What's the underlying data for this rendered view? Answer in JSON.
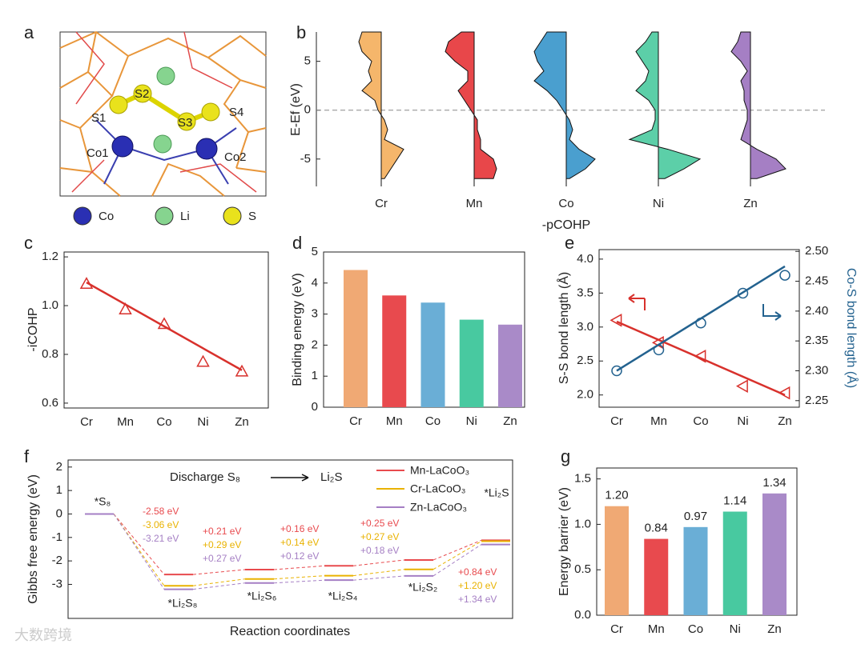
{
  "panel_labels": [
    "a",
    "b",
    "c",
    "d",
    "e",
    "f",
    "g"
  ],
  "structure": {
    "atom_labels": [
      "S1",
      "S2",
      "S3",
      "S4",
      "Co1",
      "Co2"
    ],
    "legend": [
      {
        "name": "Co",
        "color": "#2a2fb3"
      },
      {
        "name": "Li",
        "color": "#86d48f"
      },
      {
        "name": "S",
        "color": "#e9e21c"
      }
    ]
  },
  "watermark": "大数跨境",
  "chart_data": [
    {
      "type": "area",
      "ylabel": "E-Ef (eV)",
      "xlabel": "-pCOHP",
      "y": [
        -7,
        -6,
        -5,
        -4,
        -3,
        -2,
        -1,
        0,
        1,
        2,
        3,
        4,
        5,
        6,
        7,
        8
      ],
      "series": [
        {
          "name": "Cr",
          "color": "#f5b66b",
          "values": [
            0.05,
            0.15,
            0.25,
            0.35,
            0.05,
            0.1,
            0.05,
            -0.05,
            -0.1,
            -0.3,
            -0.15,
            -0.2,
            -0.15,
            -0.3,
            -0.35,
            -0.3
          ]
        },
        {
          "name": "Mn",
          "color": "#e8474a",
          "values": [
            0.3,
            0.35,
            0.3,
            0.1,
            0.1,
            0.05,
            0.05,
            -0.05,
            -0.15,
            -0.25,
            -0.1,
            -0.1,
            -0.3,
            -0.45,
            -0.4,
            -0.2
          ]
        },
        {
          "name": "Co",
          "color": "#4a9fcf",
          "values": [
            0.05,
            0.3,
            0.45,
            0.2,
            0.05,
            0.1,
            0.05,
            -0.05,
            -0.15,
            -0.3,
            -0.5,
            -0.35,
            -0.45,
            -0.5,
            -0.4,
            -0.3
          ]
        },
        {
          "name": "Ni",
          "color": "#5ccfa8",
          "values": [
            0.1,
            0.4,
            0.65,
            0.15,
            -0.45,
            -0.1,
            -0.05,
            -0.05,
            -0.15,
            -0.35,
            -0.2,
            -0.15,
            -0.25,
            -0.35,
            -0.2,
            -0.1
          ]
        },
        {
          "name": "Zn",
          "color": "#a57fc4",
          "values": [
            0.1,
            0.55,
            0.4,
            0.1,
            -0.15,
            -0.1,
            -0.05,
            -0.05,
            -0.1,
            -0.1,
            -0.15,
            -0.05,
            -0.15,
            -0.3,
            -0.2,
            -0.15
          ]
        }
      ],
      "ylim": [
        -7.8,
        8
      ],
      "yticks": [
        -5,
        0,
        5
      ],
      "hline": 0
    },
    {
      "type": "scatter_fit",
      "ylabel": "-iCOHP",
      "categories": [
        "Cr",
        "Mn",
        "Co",
        "Ni",
        "Zn"
      ],
      "values": [
        1.09,
        0.985,
        0.925,
        0.77,
        0.73
      ],
      "fit": [
        1.095,
        0.735
      ],
      "color": "#d8312c",
      "ylim": [
        0.58,
        1.22
      ],
      "yticks": [
        0.6,
        0.8,
        {
          "value": 1,
          "label": "1.0"
        },
        1.2
      ]
    },
    {
      "type": "bar",
      "ylabel": "Binding energy (eV)",
      "categories": [
        "Cr",
        "Mn",
        "Co",
        "Ni",
        "Zn"
      ],
      "values": [
        4.42,
        3.6,
        3.37,
        2.82,
        2.66
      ],
      "colors": [
        "#f0a974",
        "#e84a4e",
        "#6aaed6",
        "#48c9a0",
        "#a98ac8"
      ],
      "ylim": [
        0,
        5
      ],
      "yticks": [
        0,
        1,
        2,
        3,
        4,
        5
      ]
    },
    {
      "type": "dual",
      "ylabel": "S-S bond length (Å)",
      "y2label": "Co-S bond length (Å)",
      "categories": [
        "Cr",
        "Mn",
        "Co",
        "Ni",
        "Zn"
      ],
      "series": [
        {
          "color": "#d8312c",
          "marker": "triangle",
          "values": [
            3.1,
            2.77,
            2.57,
            2.13,
            2.03
          ],
          "fit": [
            3.08,
            2.0
          ]
        },
        {
          "color": "#23628f",
          "marker": "circle",
          "axis": "y2",
          "values": [
            2.3,
            2.335,
            2.38,
            2.43,
            2.46
          ],
          "fit": [
            2.3,
            2.475
          ]
        }
      ],
      "ylim": [
        1.82,
        4.14
      ],
      "yticks": [
        {
          "value": 2,
          "label": "2.0"
        },
        2.5,
        {
          "value": 3,
          "label": "3.0"
        },
        3.5,
        {
          "value": 4,
          "label": "4.0"
        }
      ],
      "y2lim": [
        2.239,
        2.503
      ],
      "y2ticks": [
        2.25,
        {
          "value": 2.3,
          "label": "2.30"
        },
        2.35,
        {
          "value": 2.4,
          "label": "2.40"
        },
        2.45,
        {
          "value": 2.5,
          "label": "2.50"
        }
      ]
    },
    {
      "type": "profile",
      "ylabel": "Gibbs free energy (eV)",
      "xlabel": "Reaction coordinates",
      "annotation": "Discharge S₈",
      "annotation_end": "Li₂S",
      "categories": [
        "*S₈",
        "*Li₂S₈",
        "*Li₂S₆",
        "*Li₂S₄",
        "*Li₂S₂",
        "*Li₂S"
      ],
      "series": [
        {
          "name": "Mn-LaCoO₃",
          "color": "#e84a4e",
          "values": [
            0,
            -2.58,
            -2.37,
            -2.21,
            -1.96,
            -1.12
          ]
        },
        {
          "name": "Cr-LaCoO₃",
          "color": "#e9b200",
          "values": [
            0,
            -3.06,
            -2.77,
            -2.63,
            -2.36,
            -1.16
          ]
        },
        {
          "name": "Zn-LaCoO₃",
          "color": "#a57fc4",
          "values": [
            0,
            -3.21,
            -2.94,
            -2.82,
            -2.64,
            -1.3
          ]
        }
      ],
      "step_labels": [
        [
          "-2.58 eV",
          "-3.06 eV",
          "-3.21 eV"
        ],
        [
          "+0.21 eV",
          "+0.29 eV",
          "+0.27 eV"
        ],
        [
          "+0.16 eV",
          "+0.14 eV",
          "+0.12 eV"
        ],
        [
          "+0.25 eV",
          "+0.27 eV",
          "+0.18 eV"
        ],
        [
          "+0.84 eV",
          "+1.20 eV",
          "+1.34 eV"
        ]
      ],
      "ylim": [
        -4.45,
        2.3
      ],
      "yticks": [
        -3,
        -2,
        -1,
        0,
        1,
        2
      ]
    },
    {
      "type": "bar",
      "ylabel": "Energy barrier (eV)",
      "categories": [
        "Cr",
        "Mn",
        "Co",
        "Ni",
        "Zn"
      ],
      "values": [
        1.2,
        0.84,
        0.97,
        1.14,
        1.34
      ],
      "value_labels": [
        "1.20",
        "0.84",
        "0.97",
        "1.14",
        "1.34"
      ],
      "colors": [
        "#f0a974",
        "#e84a4e",
        "#6aaed6",
        "#48c9a0",
        "#a98ac8"
      ],
      "ylim": [
        0,
        1.62
      ],
      "yticks": [
        {
          "value": 0,
          "label": "0.0"
        },
        0.5,
        {
          "value": 1,
          "label": "1.0"
        },
        1.5
      ]
    }
  ]
}
